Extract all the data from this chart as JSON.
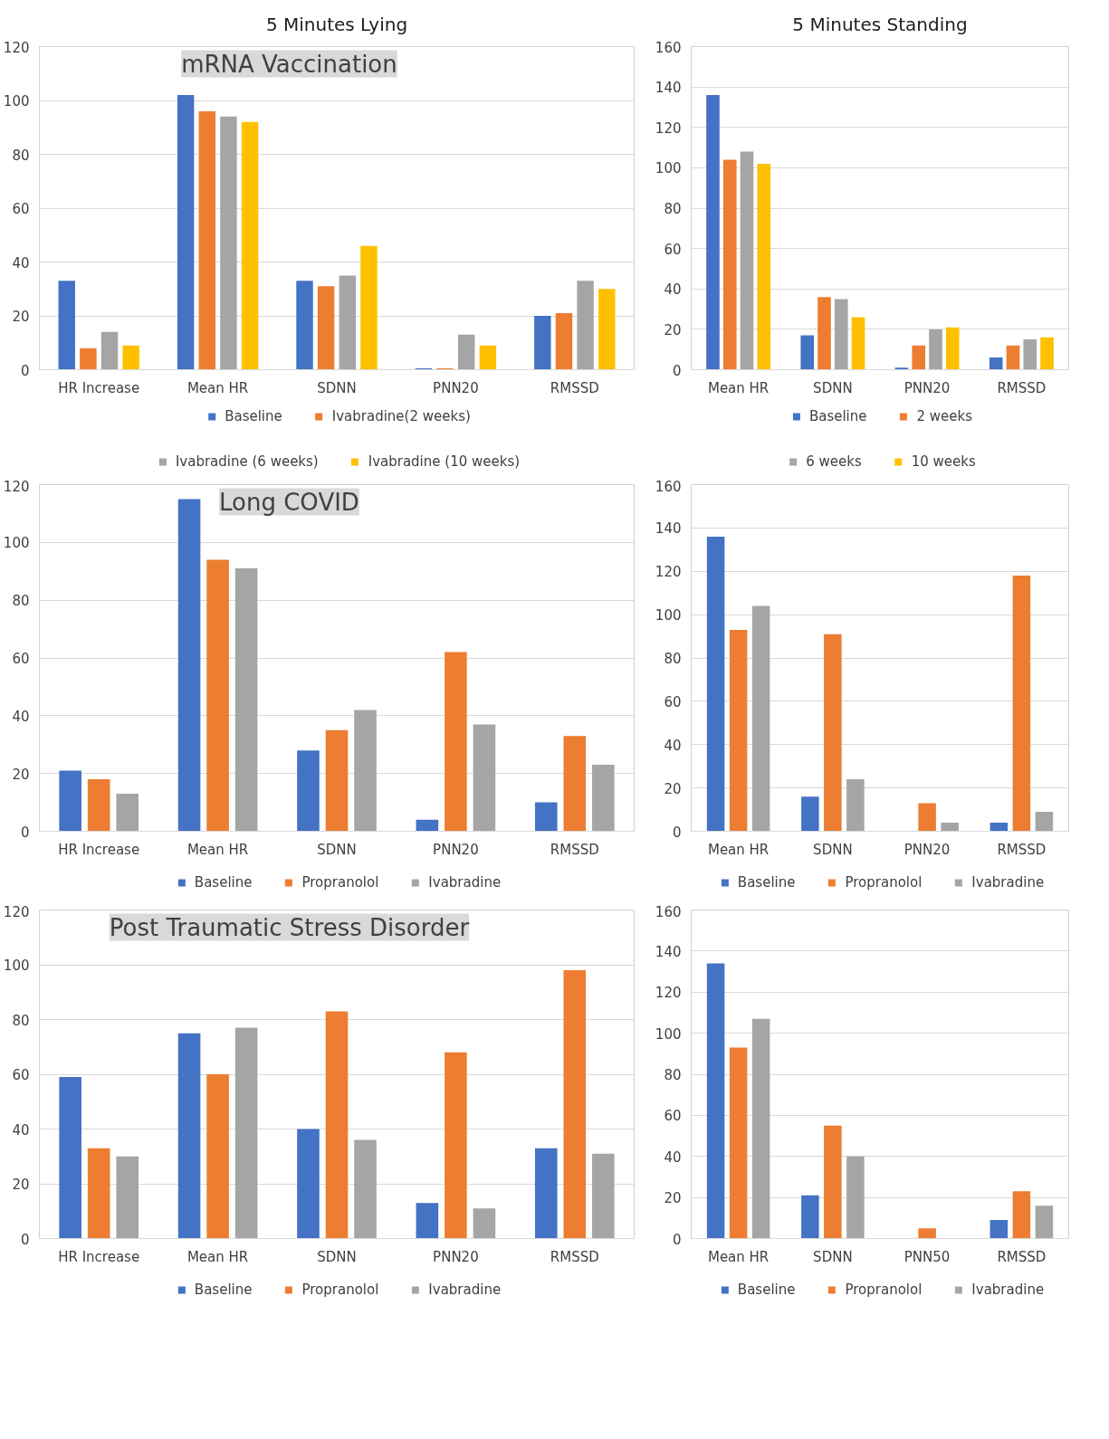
{
  "chart_data": [
    {
      "type": "bar",
      "title": "mRNA Vaccination",
      "annotations": [
        "5 Minutes Lying"
      ],
      "categories": [
        "HR Increase",
        "Mean HR",
        "SDNN",
        "PNN20",
        "RMSSD"
      ],
      "ylim": [
        0,
        120
      ],
      "yticks": [
        0,
        20,
        40,
        60,
        80,
        100,
        120
      ],
      "grid": "y",
      "legend": "bottom",
      "series": [
        {
          "name": "Baseline",
          "color": "#4472c4",
          "values": [
            33,
            102,
            33,
            0.5,
            20
          ]
        },
        {
          "name": "Ivabradine(2 weeks)",
          "color": "#ed7d31",
          "values": [
            8,
            96,
            31,
            0.5,
            21
          ]
        },
        {
          "name": "Ivabradine (6 weeks)",
          "color": "#a5a5a5",
          "values": [
            14,
            94,
            35,
            13,
            33
          ]
        },
        {
          "name": "Ivabradine (10 weeks)",
          "color": "#ffc000",
          "values": [
            9,
            92,
            46,
            9,
            30
          ]
        }
      ]
    },
    {
      "type": "bar",
      "annotations": [
        "5 Minutes Standing"
      ],
      "categories": [
        "Mean HR",
        "SDNN",
        "PNN20",
        "RMSSD"
      ],
      "ylim": [
        0,
        160
      ],
      "yticks": [
        0,
        20,
        40,
        60,
        80,
        100,
        120,
        140,
        160
      ],
      "grid": "y",
      "legend": "bottom",
      "series": [
        {
          "name": "Baseline",
          "color": "#4472c4",
          "values": [
            136,
            17,
            1,
            6
          ]
        },
        {
          "name": "2 weeks",
          "color": "#ed7d31",
          "values": [
            104,
            36,
            12,
            12
          ]
        },
        {
          "name": "6 weeks",
          "color": "#a5a5a5",
          "values": [
            108,
            35,
            20,
            15
          ]
        },
        {
          "name": "10 weeks",
          "color": "#ffc000",
          "values": [
            102,
            26,
            21,
            16
          ]
        }
      ]
    },
    {
      "type": "bar",
      "title": "Long COVID",
      "categories": [
        "HR Increase",
        "Mean HR",
        "SDNN",
        "PNN20",
        "RMSSD"
      ],
      "ylim": [
        0,
        120
      ],
      "yticks": [
        0,
        20,
        40,
        60,
        80,
        100,
        120
      ],
      "grid": "y",
      "legend": "bottom",
      "series": [
        {
          "name": "Baseline",
          "color": "#4472c4",
          "values": [
            21,
            115,
            28,
            4,
            10
          ]
        },
        {
          "name": "Propranolol",
          "color": "#ed7d31",
          "values": [
            18,
            94,
            35,
            62,
            33
          ]
        },
        {
          "name": "Ivabradine",
          "color": "#a5a5a5",
          "values": [
            13,
            91,
            42,
            37,
            23
          ]
        }
      ]
    },
    {
      "type": "bar",
      "categories": [
        "Mean HR",
        "SDNN",
        "PNN20",
        "RMSSD"
      ],
      "ylim": [
        0,
        160
      ],
      "yticks": [
        0,
        20,
        40,
        60,
        80,
        100,
        120,
        140,
        160
      ],
      "grid": "y",
      "legend": "bottom",
      "series": [
        {
          "name": "Baseline",
          "color": "#4472c4",
          "values": [
            136,
            16,
            0,
            4
          ]
        },
        {
          "name": "Propranolol",
          "color": "#ed7d31",
          "values": [
            93,
            91,
            13,
            118
          ]
        },
        {
          "name": "Ivabradine",
          "color": "#a5a5a5",
          "values": [
            104,
            24,
            4,
            9
          ]
        }
      ]
    },
    {
      "type": "bar",
      "title": "Post Traumatic Stress Disorder",
      "categories": [
        "HR Increase",
        "Mean HR",
        "SDNN",
        "PNN20",
        "RMSSD"
      ],
      "ylim": [
        0,
        120
      ],
      "yticks": [
        0,
        20,
        40,
        60,
        80,
        100,
        120
      ],
      "grid": "y",
      "legend": "bottom",
      "series": [
        {
          "name": "Baseline",
          "color": "#4472c4",
          "values": [
            59,
            75,
            40,
            13,
            33
          ]
        },
        {
          "name": "Propranolol",
          "color": "#ed7d31",
          "values": [
            33,
            60,
            83,
            68,
            98
          ]
        },
        {
          "name": "Ivabradine",
          "color": "#a5a5a5",
          "values": [
            30,
            77,
            36,
            11,
            31
          ]
        }
      ]
    },
    {
      "type": "bar",
      "categories": [
        "Mean HR",
        "SDNN",
        "PNN50",
        "RMSSD"
      ],
      "ylim": [
        0,
        160
      ],
      "yticks": [
        0,
        20,
        40,
        60,
        80,
        100,
        120,
        140,
        160
      ],
      "grid": "y",
      "legend": "bottom",
      "series": [
        {
          "name": "Baseline",
          "color": "#4472c4",
          "values": [
            134,
            21,
            0,
            9
          ]
        },
        {
          "name": "Propranolol",
          "color": "#ed7d31",
          "values": [
            93,
            55,
            5,
            23
          ]
        },
        {
          "name": "Ivabradine",
          "color": "#a5a5a5",
          "values": [
            107,
            40,
            0,
            16
          ]
        }
      ]
    }
  ]
}
